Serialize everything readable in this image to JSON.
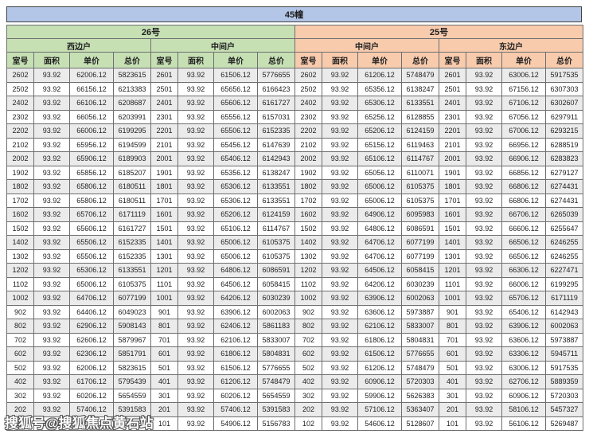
{
  "title": "45幢",
  "watermark": "搜狐号@搜狐焦点黄石站",
  "buildings": [
    {
      "name": "26号",
      "units": [
        "西边户",
        "中间户"
      ]
    },
    {
      "name": "25号",
      "units": [
        "中间户",
        "东边户"
      ]
    }
  ],
  "col_headers": [
    "室号",
    "面积",
    "单价",
    "总价"
  ],
  "sections": [
    {
      "building": "26号",
      "unit": "西边户",
      "rows": [
        [
          "2602",
          "93.92",
          "62006.12",
          "5823615"
        ],
        [
          "2502",
          "93.92",
          "66156.12",
          "6213383"
        ],
        [
          "2402",
          "93.92",
          "66106.12",
          "6208687"
        ],
        [
          "2302",
          "93.92",
          "66056.12",
          "6203991"
        ],
        [
          "2202",
          "93.92",
          "66006.12",
          "6199295"
        ],
        [
          "2102",
          "93.92",
          "65956.12",
          "6194599"
        ],
        [
          "2002",
          "93.92",
          "65906.12",
          "6189903"
        ],
        [
          "1902",
          "93.92",
          "65856.12",
          "6185207"
        ],
        [
          "1802",
          "93.92",
          "65806.12",
          "6180511"
        ],
        [
          "1702",
          "93.92",
          "65806.12",
          "6180511"
        ],
        [
          "1602",
          "93.92",
          "65706.12",
          "6171119"
        ],
        [
          "1502",
          "93.92",
          "65606.12",
          "6161727"
        ],
        [
          "1402",
          "93.92",
          "65506.12",
          "6152335"
        ],
        [
          "1302",
          "93.92",
          "65506.12",
          "6152335"
        ],
        [
          "1202",
          "93.92",
          "65306.12",
          "6133551"
        ],
        [
          "1102",
          "93.92",
          "65006.12",
          "6105375"
        ],
        [
          "1002",
          "93.92",
          "64706.12",
          "6077199"
        ],
        [
          "902",
          "93.92",
          "64406.12",
          "6049023"
        ],
        [
          "802",
          "93.92",
          "62906.12",
          "5908143"
        ],
        [
          "702",
          "93.92",
          "62606.12",
          "5879967"
        ],
        [
          "602",
          "93.92",
          "62306.12",
          "5851791"
        ],
        [
          "502",
          "93.92",
          "62006.12",
          "5823615"
        ],
        [
          "402",
          "93.92",
          "61706.12",
          "5795439"
        ],
        [
          "302",
          "93.92",
          "60206.12",
          "5654559"
        ],
        [
          "202",
          "93.92",
          "57406.12",
          "5391583"
        ],
        [
          "102",
          "93.92",
          "54906.12",
          "5156783"
        ]
      ]
    },
    {
      "building": "26号",
      "unit": "中间户",
      "rows": [
        [
          "2601",
          "93.92",
          "61506.12",
          "5776655"
        ],
        [
          "2501",
          "93.92",
          "65656.12",
          "6166423"
        ],
        [
          "2401",
          "93.92",
          "65606.12",
          "6161727"
        ],
        [
          "2301",
          "93.92",
          "65556.12",
          "6157031"
        ],
        [
          "2201",
          "93.92",
          "65506.12",
          "6152335"
        ],
        [
          "2101",
          "93.92",
          "65456.12",
          "6147639"
        ],
        [
          "2001",
          "93.92",
          "65406.12",
          "6142943"
        ],
        [
          "1901",
          "93.92",
          "65356.12",
          "6138247"
        ],
        [
          "1801",
          "93.92",
          "65306.12",
          "6133551"
        ],
        [
          "1701",
          "93.92",
          "65306.12",
          "6133551"
        ],
        [
          "1601",
          "93.92",
          "65206.12",
          "6124159"
        ],
        [
          "1501",
          "93.92",
          "65106.12",
          "6114767"
        ],
        [
          "1401",
          "93.92",
          "65006.12",
          "6105375"
        ],
        [
          "1301",
          "93.92",
          "65006.12",
          "6105375"
        ],
        [
          "1201",
          "93.92",
          "64806.12",
          "6086591"
        ],
        [
          "1101",
          "93.92",
          "64506.12",
          "6058415"
        ],
        [
          "1001",
          "93.92",
          "64206.12",
          "6030239"
        ],
        [
          "901",
          "93.92",
          "63906.12",
          "6002063"
        ],
        [
          "801",
          "93.92",
          "62406.12",
          "5861183"
        ],
        [
          "701",
          "93.92",
          "62106.12",
          "5833007"
        ],
        [
          "601",
          "93.92",
          "61806.12",
          "5804831"
        ],
        [
          "501",
          "93.92",
          "61506.12",
          "5776655"
        ],
        [
          "401",
          "93.92",
          "61206.12",
          "5748479"
        ],
        [
          "301",
          "93.92",
          "60206.12",
          "5654559"
        ],
        [
          "201",
          "93.92",
          "57406.12",
          "5391583"
        ],
        [
          "101",
          "93.92",
          "54906.12",
          "5156783"
        ]
      ]
    },
    {
      "building": "25号",
      "unit": "中间户",
      "rows": [
        [
          "2602",
          "93.92",
          "61206.12",
          "5748479"
        ],
        [
          "2502",
          "93.92",
          "65356.12",
          "6138247"
        ],
        [
          "2402",
          "93.92",
          "65306.12",
          "6133551"
        ],
        [
          "2302",
          "93.92",
          "65256.12",
          "6128855"
        ],
        [
          "2202",
          "93.92",
          "65206.12",
          "6124159"
        ],
        [
          "2102",
          "93.92",
          "65156.12",
          "6119463"
        ],
        [
          "2002",
          "93.92",
          "65106.12",
          "6114767"
        ],
        [
          "1902",
          "93.92",
          "65056.12",
          "6110071"
        ],
        [
          "1802",
          "93.92",
          "65006.12",
          "6105375"
        ],
        [
          "1702",
          "93.92",
          "65006.12",
          "6105375"
        ],
        [
          "1602",
          "93.92",
          "64906.12",
          "6095983"
        ],
        [
          "1502",
          "93.92",
          "64806.12",
          "6086591"
        ],
        [
          "1402",
          "93.92",
          "64706.12",
          "6077199"
        ],
        [
          "1302",
          "93.92",
          "64706.12",
          "6077199"
        ],
        [
          "1202",
          "93.92",
          "64506.12",
          "6058415"
        ],
        [
          "1102",
          "93.92",
          "64206.12",
          "6030239"
        ],
        [
          "1002",
          "93.92",
          "63906.12",
          "6002063"
        ],
        [
          "902",
          "93.92",
          "63606.12",
          "5973887"
        ],
        [
          "802",
          "93.92",
          "62106.12",
          "5833007"
        ],
        [
          "702",
          "93.92",
          "61806.12",
          "5804831"
        ],
        [
          "602",
          "93.92",
          "61506.12",
          "5776655"
        ],
        [
          "502",
          "93.92",
          "61206.12",
          "5748479"
        ],
        [
          "402",
          "93.92",
          "60906.12",
          "5720303"
        ],
        [
          "302",
          "93.92",
          "59906.12",
          "5626383"
        ],
        [
          "202",
          "93.92",
          "57106.12",
          "5363407"
        ],
        [
          "102",
          "93.92",
          "54606.12",
          "5128607"
        ]
      ]
    },
    {
      "building": "25号",
      "unit": "东边户",
      "rows": [
        [
          "2601",
          "93.92",
          "63006.12",
          "5917535"
        ],
        [
          "2501",
          "93.92",
          "67156.12",
          "6307303"
        ],
        [
          "2401",
          "93.92",
          "67106.12",
          "6302607"
        ],
        [
          "2301",
          "93.92",
          "67056.12",
          "6297911"
        ],
        [
          "2201",
          "93.92",
          "67006.12",
          "6293215"
        ],
        [
          "2101",
          "93.92",
          "66956.12",
          "6288519"
        ],
        [
          "2001",
          "93.92",
          "66906.12",
          "6283823"
        ],
        [
          "1901",
          "93.92",
          "66856.12",
          "6279127"
        ],
        [
          "1801",
          "93.92",
          "66806.12",
          "6274431"
        ],
        [
          "1701",
          "93.92",
          "66806.12",
          "6274431"
        ],
        [
          "1601",
          "93.92",
          "66706.12",
          "6265039"
        ],
        [
          "1501",
          "93.92",
          "66606.12",
          "6255647"
        ],
        [
          "1401",
          "93.92",
          "66506.12",
          "6246255"
        ],
        [
          "1301",
          "93.92",
          "66506.12",
          "6246255"
        ],
        [
          "1201",
          "93.92",
          "66306.12",
          "6227471"
        ],
        [
          "1101",
          "93.92",
          "66006.12",
          "6199295"
        ],
        [
          "1001",
          "93.92",
          "65706.12",
          "6171119"
        ],
        [
          "901",
          "93.92",
          "65406.12",
          "6142943"
        ],
        [
          "801",
          "93.92",
          "63906.12",
          "6002063"
        ],
        [
          "701",
          "93.92",
          "63606.12",
          "5973887"
        ],
        [
          "601",
          "93.92",
          "63306.12",
          "5945711"
        ],
        [
          "501",
          "93.92",
          "63006.12",
          "5917535"
        ],
        [
          "401",
          "93.92",
          "62706.12",
          "5889359"
        ],
        [
          "301",
          "93.92",
          "60906.12",
          "5720303"
        ],
        [
          "201",
          "93.92",
          "58106.12",
          "5457327"
        ],
        [
          "101",
          "93.92",
          "56106.12",
          "5269487"
        ]
      ]
    }
  ],
  "colors": {
    "banner": "#b4c6e7",
    "header_green": "#c6e0b4",
    "header_orange": "#f8cbad",
    "room_green": "#e2efda",
    "room_orange": "#fce4d6",
    "stripe": "#ebebeb"
  }
}
